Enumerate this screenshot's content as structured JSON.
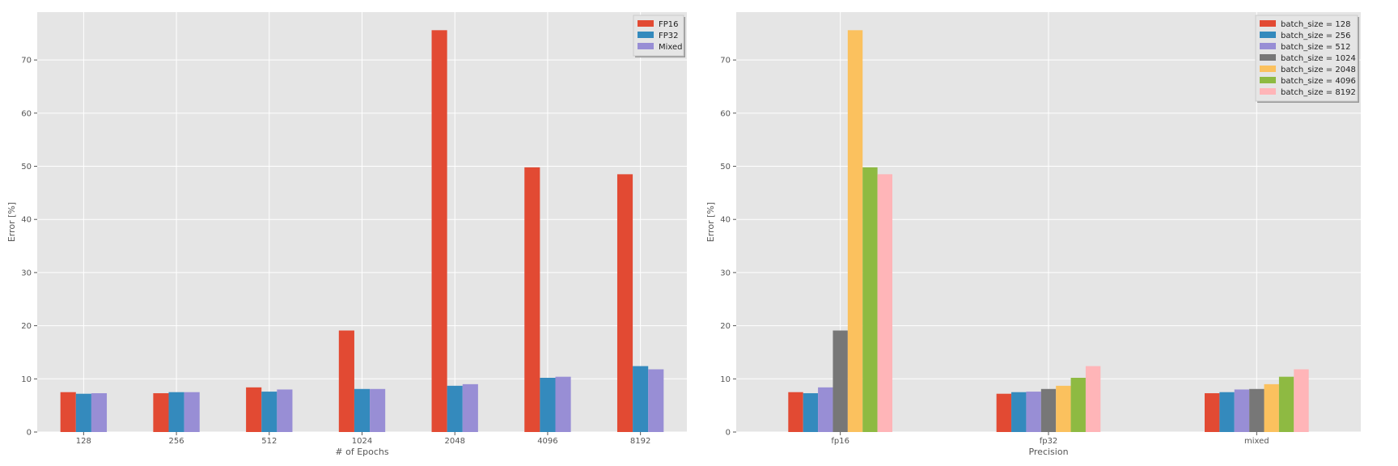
{
  "chart_data": [
    {
      "type": "bar",
      "title": "",
      "xlabel": "# of Epochs",
      "ylabel": "Error [%]",
      "ylim": [
        0,
        79
      ],
      "yticks": [
        0,
        10,
        20,
        30,
        40,
        50,
        60,
        70
      ],
      "grid": true,
      "legend_position": "top-right",
      "categories": [
        "128",
        "256",
        "512",
        "1024",
        "2048",
        "4096",
        "8192"
      ],
      "series": [
        {
          "name": "FP16",
          "color": "#E24A33",
          "values": [
            7.5,
            7.3,
            8.4,
            19.1,
            75.6,
            49.8,
            48.5
          ]
        },
        {
          "name": "FP32",
          "color": "#348ABD",
          "values": [
            7.2,
            7.5,
            7.6,
            8.1,
            8.7,
            10.2,
            12.4
          ]
        },
        {
          "name": "Mixed",
          "color": "#988ED5",
          "values": [
            7.3,
            7.5,
            8.0,
            8.1,
            9.0,
            10.4,
            11.8
          ]
        }
      ]
    },
    {
      "type": "bar",
      "title": "",
      "xlabel": "Precision",
      "ylabel": "Error [%]",
      "ylim": [
        0,
        79
      ],
      "yticks": [
        0,
        10,
        20,
        30,
        40,
        50,
        60,
        70
      ],
      "grid": true,
      "legend_position": "top-right",
      "categories": [
        "fp16",
        "fp32",
        "mixed"
      ],
      "series": [
        {
          "name": "batch_size = 128",
          "color": "#E24A33",
          "values": [
            7.5,
            7.2,
            7.3
          ]
        },
        {
          "name": "batch_size = 256",
          "color": "#348ABD",
          "values": [
            7.3,
            7.5,
            7.5
          ]
        },
        {
          "name": "batch_size = 512",
          "color": "#988ED5",
          "values": [
            8.4,
            7.6,
            8.0
          ]
        },
        {
          "name": "batch_size = 1024",
          "color": "#777777",
          "values": [
            19.1,
            8.1,
            8.1
          ]
        },
        {
          "name": "batch_size = 2048",
          "color": "#FBC15E",
          "values": [
            75.6,
            8.7,
            9.0
          ]
        },
        {
          "name": "batch_size = 4096",
          "color": "#8EBA42",
          "values": [
            49.8,
            10.2,
            10.4
          ]
        },
        {
          "name": "batch_size = 8192",
          "color": "#FFB5B8",
          "values": [
            48.5,
            12.4,
            11.8
          ]
        }
      ]
    }
  ]
}
